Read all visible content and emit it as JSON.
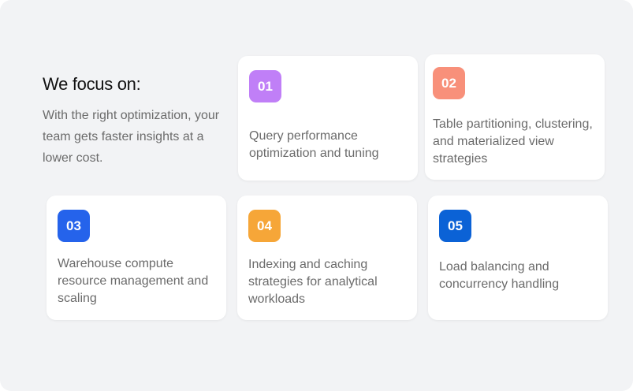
{
  "heading": "We focus on:",
  "subtitle": "With the right optimization, your team gets faster insights at a lower cost.",
  "items": [
    {
      "number": "01",
      "text": "Query performance optimization and tuning",
      "color": "#c07ff7"
    },
    {
      "number": "02",
      "text": "Table partitioning, clustering, and materialized view strategies",
      "color": "#f8907a"
    },
    {
      "number": "03",
      "text": "Warehouse compute resource management and scaling",
      "color": "#2563eb"
    },
    {
      "number": "04",
      "text": "Indexing and caching strategies for analytical workloads",
      "color": "#f6a638"
    },
    {
      "number": "05",
      "text": "Load balancing and concurrency handling",
      "color": "#0b62d6"
    }
  ]
}
